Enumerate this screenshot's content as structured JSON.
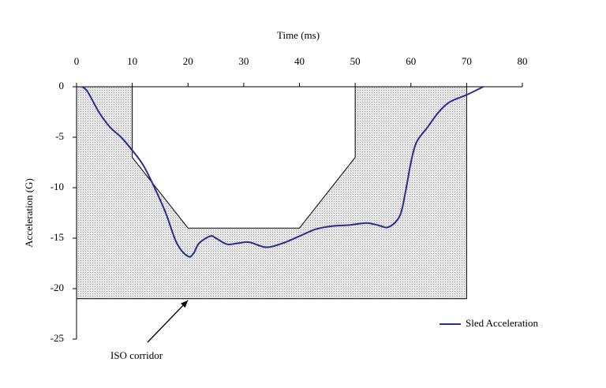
{
  "chart_data": {
    "type": "line",
    "x_label": "Time (ms)",
    "y_label": "Acceleration (G)",
    "xlim": [
      0,
      80
    ],
    "xticks": [
      0,
      10,
      20,
      30,
      40,
      50,
      60,
      70,
      80
    ],
    "ylim": [
      -25,
      0
    ],
    "yticks": [
      0,
      -5,
      -10,
      -15,
      -20,
      -25
    ],
    "x_axis_position": "top",
    "series": [
      {
        "name": "Sled Acceleration",
        "color": "#2b2b96",
        "x": [
          1,
          2,
          4,
          6,
          8,
          10,
          12,
          14,
          16,
          18,
          20,
          21,
          22,
          24,
          25,
          27,
          29,
          31,
          34,
          37,
          40,
          43,
          46,
          49,
          52,
          54,
          56,
          58,
          59,
          60,
          61,
          63,
          65,
          67,
          70,
          73
        ],
        "values": [
          0,
          -0.5,
          -2.5,
          -4,
          -5,
          -6.3,
          -7.8,
          -10,
          -12.5,
          -15.5,
          -16.8,
          -16.5,
          -15.5,
          -14.8,
          -15,
          -15.6,
          -15.5,
          -15.4,
          -15.9,
          -15.5,
          -14.8,
          -14.1,
          -13.8,
          -13.7,
          -13.5,
          -13.7,
          -13.9,
          -12.8,
          -10.5,
          -7.5,
          -5.5,
          -4,
          -2.5,
          -1.5,
          -0.8,
          0
        ]
      }
    ],
    "corridor": {
      "color": "#d4d4d4",
      "x": [
        0,
        10,
        10,
        20,
        40,
        50,
        50,
        70,
        70,
        0
      ],
      "values": [
        0,
        0,
        -7,
        -14,
        -14,
        -7,
        0,
        0,
        -21,
        -21
      ]
    },
    "annotation": {
      "text": "ISO corridor",
      "x": 20,
      "y": -21
    },
    "legend": "bottom-right"
  }
}
